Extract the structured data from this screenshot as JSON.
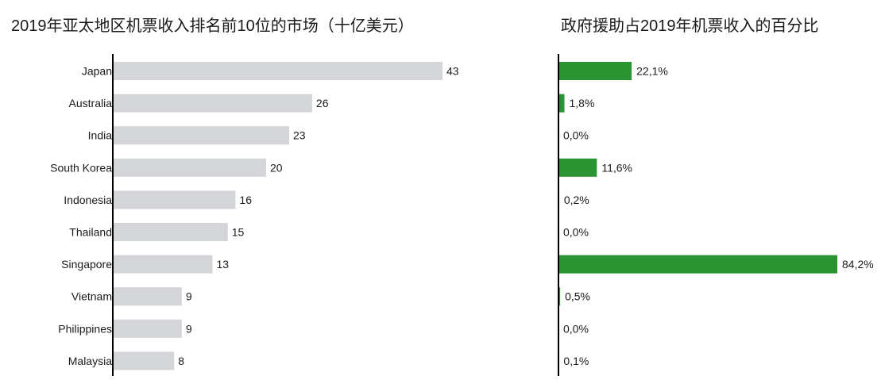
{
  "chart_data": [
    {
      "type": "bar",
      "orientation": "horizontal",
      "title": "2019年亚太地区机票收入排名前10位的市场（十亿美元）",
      "categories": [
        "Japan",
        "Australia",
        "India",
        "South Korea",
        "Indonesia",
        "Thailand",
        "Singapore",
        "Vietnam",
        "Philippines",
        "Malaysia"
      ],
      "values": [
        43,
        26,
        23,
        20,
        16,
        15,
        13,
        9,
        9,
        8
      ],
      "value_labels": [
        "43",
        "26",
        "23",
        "20",
        "16",
        "15",
        "13",
        "9",
        "9",
        "8"
      ],
      "color": "#d4d5d8",
      "grid": false
    },
    {
      "type": "bar",
      "orientation": "horizontal",
      "title": "政府援助占2019年机票收入的百分比",
      "categories": [
        "Japan",
        "Australia",
        "India",
        "South Korea",
        "Indonesia",
        "Thailand",
        "Singapore",
        "Vietnam",
        "Philippines",
        "Malaysia"
      ],
      "values": [
        22.1,
        1.8,
        0.0,
        11.6,
        0.2,
        0.0,
        84.2,
        0.5,
        0.0,
        0.1
      ],
      "value_labels": [
        "22,1%",
        "1,8%",
        "0,0%",
        "11,6%",
        "0,2%",
        "0,0%",
        "84,2%",
        "0,5%",
        "0,0%",
        "0,1%"
      ],
      "color": "#2a9432",
      "grid": false
    }
  ]
}
